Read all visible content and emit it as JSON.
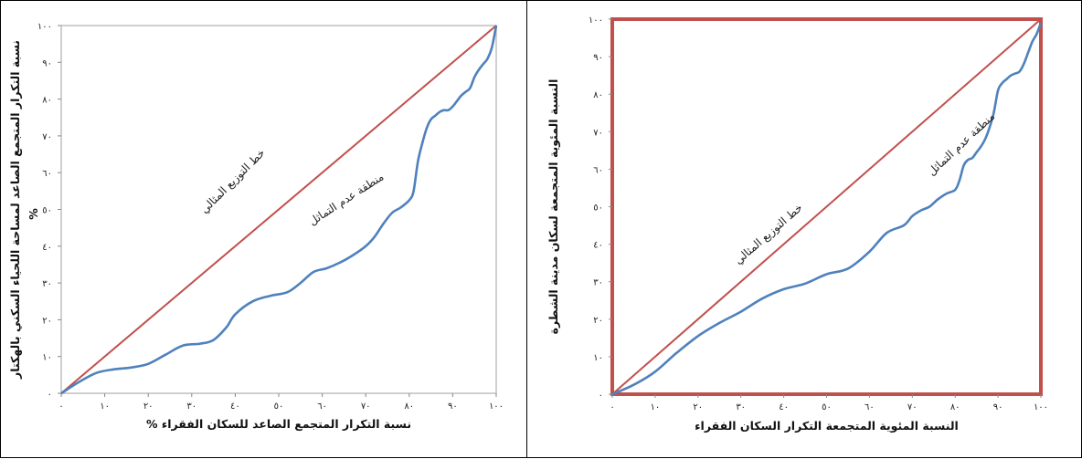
{
  "chart_data": [
    {
      "type": "line",
      "xlabel": "نسبة التكرار المتجمع الصاعد للسكان الفقراء %",
      "ylabel": "نسبة التكرار المتجمع الصاعد لمساحة اللحياء السكني بالهكتار",
      "ylabel_unit": "%",
      "x_ticks": [
        "٠",
        "١٠",
        "٢٠",
        "٣٠",
        "٤٠",
        "٥٠",
        "٦٠",
        "٧٠",
        "٨٠",
        "٩٠",
        "١٠٠"
      ],
      "y_ticks": [
        "٠",
        "١٠",
        "٢٠",
        "٣٠",
        "٤٠",
        "٥٠",
        "٦٠",
        "٧٠",
        "٨٠",
        "٩٠",
        "١٠٠"
      ],
      "xlim": [
        0,
        100
      ],
      "ylim": [
        0,
        100
      ],
      "grid": false,
      "frame_color": "#bfbfbf",
      "annotations": {
        "equality_line": "خط التوزيع المثالي",
        "inequality_area": "منطقة عدم التماثل"
      },
      "series": [
        {
          "color": "#c0504d",
          "x": [
            0,
            100
          ],
          "y": [
            0,
            100
          ]
        },
        {
          "color": "#4f81bd",
          "x": [
            0,
            4,
            8,
            12,
            16,
            20,
            24,
            28,
            32,
            35,
            38,
            40,
            44,
            48,
            52,
            55,
            58,
            61,
            64,
            67,
            70,
            72,
            74,
            76,
            78,
            80,
            81,
            82,
            83,
            84,
            85,
            86,
            87,
            88,
            89,
            90,
            91,
            92,
            93,
            94,
            95,
            96,
            97,
            98,
            99,
            100
          ],
          "y": [
            0,
            3,
            5.5,
            6.5,
            7,
            8,
            10.5,
            13,
            13.5,
            14.5,
            18,
            21.5,
            25,
            26.5,
            27.5,
            30,
            33,
            34,
            35.5,
            37.5,
            40,
            42.5,
            46,
            49,
            50.5,
            52.5,
            55,
            63,
            68,
            72,
            74.5,
            75.5,
            76.5,
            77,
            77,
            78,
            79.5,
            81,
            82,
            83,
            86,
            88,
            89.5,
            91,
            94,
            100
          ]
        }
      ]
    },
    {
      "type": "line",
      "xlabel": "النسبة المئوية المتجمعة التكرار السكان الفقراء",
      "ylabel": "النسبة المئوية المتجمعة لسكان مدينة الشطرة",
      "x_ticks": [
        "٠",
        "١٠",
        "٢٠",
        "٣٠",
        "٤٠",
        "٥٠",
        "٦٠",
        "٧٠",
        "٨٠",
        "٩٠",
        "١٠٠"
      ],
      "y_ticks": [
        "٠",
        "١٠",
        "٢٠",
        "٣٠",
        "٤٠",
        "٥٠",
        "٦٠",
        "٧٠",
        "٨٠",
        "٩٠",
        "١٠٠"
      ],
      "xlim": [
        0,
        100
      ],
      "ylim": [
        0,
        100
      ],
      "grid": false,
      "frame_color": "#c0504d",
      "annotations": {
        "equality_line": "خط التوزيع المثالي",
        "inequality_area": "منطقة عدم التماثل"
      },
      "series": [
        {
          "color": "#c0504d",
          "x": [
            0,
            100
          ],
          "y": [
            0,
            100
          ]
        },
        {
          "color": "#4f81bd",
          "x": [
            0,
            5,
            10,
            15,
            20,
            25,
            30,
            35,
            40,
            45,
            50,
            55,
            60,
            64,
            68,
            70,
            72,
            74,
            76,
            78,
            80,
            81,
            82,
            83,
            84,
            85,
            86,
            87,
            88,
            89,
            90,
            91,
            92,
            93,
            94,
            95,
            96,
            97,
            98,
            99,
            100
          ],
          "y": [
            0,
            2.5,
            6,
            11,
            15.5,
            19,
            22,
            25.5,
            28,
            29.5,
            32,
            33.5,
            38,
            43,
            45,
            47.5,
            49,
            50,
            52,
            53.5,
            54.5,
            57,
            61,
            62.5,
            63,
            64.5,
            66,
            68,
            71,
            75,
            81,
            83,
            84,
            85,
            85.5,
            86,
            88,
            91,
            94,
            96,
            99
          ]
        }
      ]
    }
  ]
}
